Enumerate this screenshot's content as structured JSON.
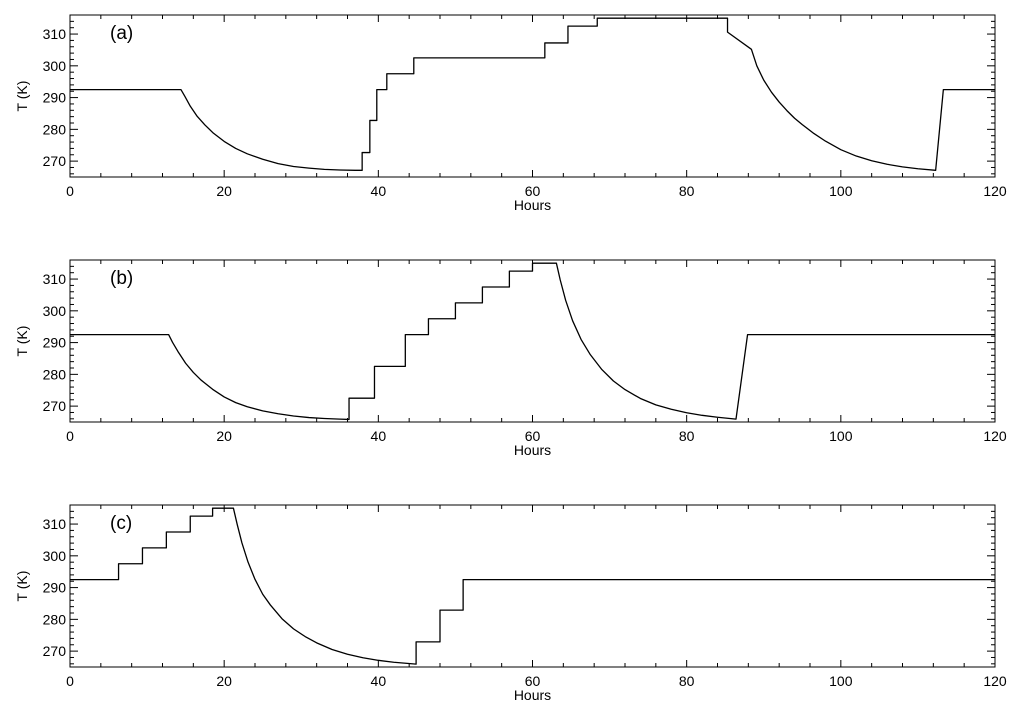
{
  "chart_data": [
    {
      "type": "line",
      "panel_label": "(a)",
      "xlabel": "Hours",
      "ylabel": "T (K)",
      "xlim": [
        0,
        120
      ],
      "ylim": [
        265,
        316
      ],
      "xticks": [
        0,
        20,
        40,
        60,
        80,
        100,
        120
      ],
      "yticks": [
        270,
        280,
        290,
        300,
        310
      ],
      "grid": false,
      "series": [
        {
          "x": [
            0,
            14.4,
            14.9,
            15.6,
            16.5,
            17.5,
            18.6,
            20,
            21.5,
            23,
            25,
            27,
            29,
            31,
            33,
            35,
            37,
            37.9,
            37.9,
            38.9,
            38.9,
            39.8,
            39.8,
            41.1,
            41.1,
            44.6,
            44.6,
            61.6,
            61.6,
            64.6,
            64.6,
            68.4,
            68.4,
            85.3,
            85.3,
            88.4,
            89.1,
            90,
            91,
            92,
            93,
            94,
            95,
            96.5,
            98,
            100,
            102,
            104,
            106,
            108,
            110,
            112.3,
            113.3,
            120
          ],
          "y": [
            292.5,
            292.5,
            290.4,
            287.3,
            284.1,
            281.4,
            278.8,
            276.2,
            274.0,
            272.3,
            270.6,
            269.2,
            268.3,
            267.8,
            267.4,
            267.2,
            267.1,
            267.1,
            272.7,
            272.7,
            282.8,
            282.8,
            292.5,
            292.5,
            297.5,
            297.5,
            302.5,
            302.5,
            307.2,
            307.2,
            312.5,
            312.5,
            315,
            315,
            310.6,
            305.2,
            300.0,
            295.5,
            291.7,
            288.6,
            285.9,
            283.5,
            281.5,
            278.7,
            276.3,
            273.6,
            271.6,
            270.1,
            269.0,
            268.2,
            267.6,
            267.1,
            292.5,
            292.5
          ]
        }
      ]
    },
    {
      "type": "line",
      "panel_label": "(b)",
      "xlabel": "Hours",
      "ylabel": "T (K)",
      "xlim": [
        0,
        120
      ],
      "ylim": [
        265,
        316
      ],
      "xticks": [
        0,
        20,
        40,
        60,
        80,
        100,
        120
      ],
      "yticks": [
        270,
        280,
        290,
        300,
        310
      ],
      "grid": false,
      "series": [
        {
          "x": [
            0,
            12.8,
            13.3,
            14,
            15,
            16,
            17,
            18.5,
            20,
            21.5,
            23,
            25,
            27,
            29,
            31,
            33,
            35,
            36.2,
            36.2,
            39.5,
            39.5,
            43.5,
            43.5,
            46.5,
            46.5,
            50,
            50,
            53.5,
            53.5,
            57,
            57,
            60,
            60,
            63.1,
            63.6,
            64.3,
            65.2,
            66.3,
            67.5,
            69,
            70.5,
            72,
            74,
            76,
            78,
            80,
            82,
            84,
            86.4,
            87.9,
            120
          ],
          "y": [
            292.5,
            292.5,
            290.1,
            287.2,
            283.5,
            280.6,
            278.2,
            275.3,
            272.9,
            271.1,
            269.8,
            268.5,
            267.6,
            266.9,
            266.4,
            266.1,
            265.9,
            265.8,
            272.5,
            272.5,
            282.5,
            282.5,
            292.5,
            292.5,
            297.5,
            297.5,
            302.5,
            302.5,
            307.5,
            307.5,
            312.5,
            312.5,
            315,
            315,
            309.7,
            303.3,
            296.9,
            291.0,
            286.2,
            281.5,
            277.9,
            275.2,
            272.4,
            270.4,
            269.0,
            267.9,
            267.1,
            266.5,
            265.9,
            292.5,
            292.5
          ]
        }
      ]
    },
    {
      "type": "line",
      "panel_label": "(c)",
      "xlabel": "Hours",
      "ylabel": "T (K)",
      "xlim": [
        0,
        120
      ],
      "ylim": [
        265,
        316
      ],
      "xticks": [
        0,
        20,
        40,
        60,
        80,
        100,
        120
      ],
      "yticks": [
        270,
        280,
        290,
        300,
        310
      ],
      "grid": false,
      "series": [
        {
          "x": [
            0,
            6.3,
            6.3,
            9.4,
            9.4,
            12.5,
            12.5,
            15.6,
            15.6,
            18.5,
            18.5,
            21.2,
            21.7,
            22.3,
            23.1,
            24,
            25,
            26,
            27.5,
            29,
            30.5,
            32,
            34,
            36,
            38,
            40,
            42,
            44.9,
            44.9,
            48,
            48,
            51,
            51,
            120
          ],
          "y": [
            292.5,
            292.5,
            297.5,
            297.5,
            302.5,
            302.5,
            307.5,
            307.5,
            312.5,
            312.5,
            315,
            315,
            309.8,
            304.1,
            298.0,
            292.6,
            287.9,
            284.5,
            280.2,
            277.0,
            274.6,
            272.6,
            270.5,
            269.0,
            267.9,
            267.1,
            266.5,
            265.9,
            272.9,
            272.9,
            282.9,
            282.9,
            292.5,
            292.5
          ]
        }
      ]
    }
  ]
}
